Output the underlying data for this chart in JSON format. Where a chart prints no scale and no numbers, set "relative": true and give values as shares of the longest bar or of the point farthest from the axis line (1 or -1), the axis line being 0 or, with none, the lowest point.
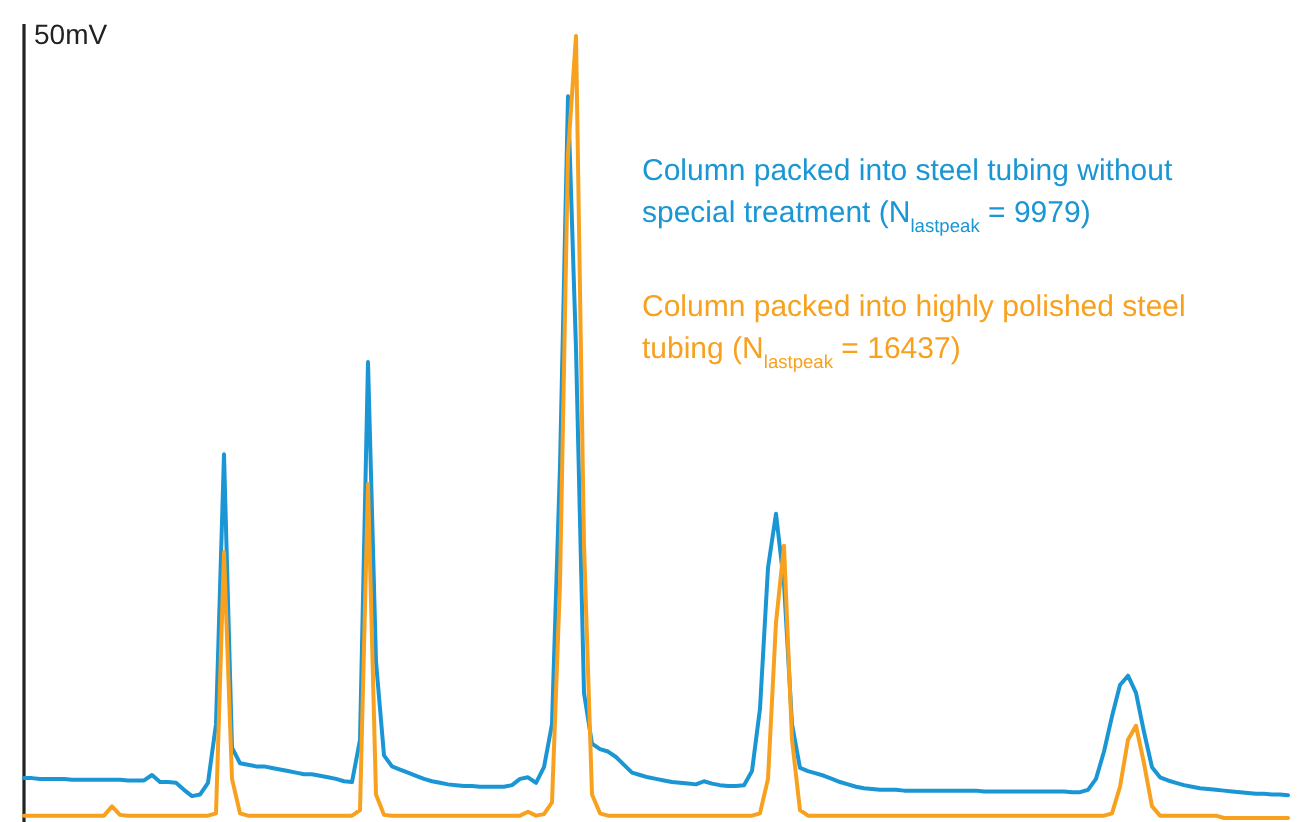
{
  "chart_data": {
    "type": "line",
    "relative": true,
    "ylabel": "50mV",
    "legend": "top right",
    "categories": [
      null,
      null,
      null,
      null,
      null,
      null,
      null,
      null,
      null,
      null,
      null,
      null,
      null,
      null,
      null,
      null,
      null,
      null,
      null,
      null,
      null,
      null,
      null,
      null,
      null,
      null,
      null,
      null,
      null,
      null,
      null,
      null,
      null,
      null,
      null,
      null,
      null,
      null,
      null,
      null,
      null,
      null,
      null,
      null,
      null,
      null,
      null,
      null,
      null,
      null,
      null,
      null,
      null,
      null,
      null,
      null,
      null,
      null,
      null,
      null,
      null,
      null,
      null,
      null,
      null,
      null,
      null,
      null,
      null,
      null,
      null,
      null,
      null,
      null,
      null,
      null,
      null,
      null,
      null,
      null,
      null,
      null,
      null,
      null,
      null,
      null,
      null,
      null,
      null,
      null,
      null,
      null,
      null,
      null,
      null,
      null,
      null,
      null,
      null,
      null,
      null,
      null,
      null,
      null,
      null,
      null,
      null,
      null,
      null,
      null,
      null,
      null,
      null,
      null,
      null,
      null,
      null,
      null,
      null,
      null,
      null,
      null,
      null,
      null,
      null,
      null,
      null,
      null,
      null,
      null,
      null,
      null,
      null,
      null,
      null,
      null,
      null,
      null,
      null,
      null,
      null,
      null,
      null,
      null,
      null,
      null,
      null,
      null,
      null,
      null,
      null,
      null,
      null,
      null,
      null,
      null,
      null,
      null,
      null
    ],
    "series": [
      {
        "name": "Column packed into steel tubing without special treatment (N$_{lastpeak}$ = 9979)",
        "color": "#1a96d5",
        "values": [
          0.051,
          0.051,
          0.05,
          0.05,
          0.05,
          0.05,
          0.049,
          0.049,
          0.049,
          0.049,
          0.049,
          0.049,
          0.049,
          0.048,
          0.048,
          0.048,
          0.055,
          0.046,
          0.046,
          0.045,
          0.036,
          0.028,
          0.03,
          0.045,
          0.12,
          0.465,
          0.09,
          0.07,
          0.068,
          0.066,
          0.066,
          0.064,
          0.062,
          0.06,
          0.058,
          0.056,
          0.056,
          0.054,
          0.052,
          0.05,
          0.047,
          0.046,
          0.1,
          0.583,
          0.2,
          0.08,
          0.066,
          0.062,
          0.058,
          0.054,
          0.05,
          0.047,
          0.045,
          0.043,
          0.042,
          0.041,
          0.041,
          0.04,
          0.04,
          0.04,
          0.04,
          0.042,
          0.05,
          0.052,
          0.045,
          0.065,
          0.12,
          0.45,
          0.923,
          0.6,
          0.16,
          0.095,
          0.088,
          0.085,
          0.078,
          0.068,
          0.058,
          0.055,
          0.052,
          0.05,
          0.048,
          0.046,
          0.045,
          0.044,
          0.043,
          0.047,
          0.044,
          0.042,
          0.041,
          0.041,
          0.042,
          0.06,
          0.14,
          0.32,
          0.389,
          0.3,
          0.12,
          0.064,
          0.06,
          0.057,
          0.054,
          0.05,
          0.046,
          0.043,
          0.04,
          0.038,
          0.037,
          0.036,
          0.036,
          0.036,
          0.035,
          0.035,
          0.035,
          0.035,
          0.035,
          0.035,
          0.035,
          0.035,
          0.035,
          0.035,
          0.034,
          0.034,
          0.034,
          0.034,
          0.034,
          0.034,
          0.034,
          0.034,
          0.034,
          0.034,
          0.034,
          0.033,
          0.033,
          0.036,
          0.05,
          0.085,
          0.13,
          0.17,
          0.182,
          0.16,
          0.11,
          0.065,
          0.052,
          0.048,
          0.045,
          0.042,
          0.04,
          0.038,
          0.037,
          0.036,
          0.035,
          0.034,
          0.033,
          0.032,
          0.031,
          0.031,
          0.03,
          0.03,
          0.029
        ]
      },
      {
        "name": "Column packed into highly polished steel tubing (N$_{lastpeak}$ = 16437)",
        "color": "#f7a11f",
        "values": [
          0.003,
          0.003,
          0.003,
          0.003,
          0.003,
          0.003,
          0.003,
          0.003,
          0.003,
          0.003,
          0.003,
          0.015,
          0.004,
          0.003,
          0.003,
          0.003,
          0.003,
          0.003,
          0.003,
          0.003,
          0.003,
          0.003,
          0.003,
          0.003,
          0.006,
          0.34,
          0.05,
          0.006,
          0.003,
          0.003,
          0.003,
          0.003,
          0.003,
          0.003,
          0.003,
          0.003,
          0.003,
          0.003,
          0.003,
          0.003,
          0.003,
          0.003,
          0.01,
          0.427,
          0.03,
          0.004,
          0.003,
          0.003,
          0.003,
          0.003,
          0.003,
          0.003,
          0.003,
          0.003,
          0.003,
          0.003,
          0.003,
          0.003,
          0.003,
          0.003,
          0.003,
          0.003,
          0.003,
          0.008,
          0.003,
          0.005,
          0.02,
          0.3,
          0.85,
          1,
          0.35,
          0.03,
          0.006,
          0.003,
          0.003,
          0.003,
          0.003,
          0.003,
          0.003,
          0.003,
          0.003,
          0.003,
          0.003,
          0.003,
          0.003,
          0.003,
          0.003,
          0.003,
          0.003,
          0.003,
          0.003,
          0.003,
          0.006,
          0.05,
          0.25,
          0.348,
          0.1,
          0.01,
          0.003,
          0.003,
          0.003,
          0.003,
          0.003,
          0.003,
          0.003,
          0.003,
          0.003,
          0.003,
          0.003,
          0.003,
          0.003,
          0.003,
          0.003,
          0.003,
          0.003,
          0.003,
          0.003,
          0.003,
          0.003,
          0.003,
          0.003,
          0.003,
          0.003,
          0.003,
          0.003,
          0.003,
          0.003,
          0.003,
          0.003,
          0.003,
          0.003,
          0.003,
          0.003,
          0.003,
          0.003,
          0.003,
          0.006,
          0.04,
          0.1,
          0.118,
          0.07,
          0.015,
          0.003,
          0.003,
          0.003,
          0.003,
          0.003,
          0.003,
          0.003,
          0.003,
          0,
          0,
          0,
          0,
          0,
          0,
          0,
          0,
          0
        ]
      }
    ]
  }
}
